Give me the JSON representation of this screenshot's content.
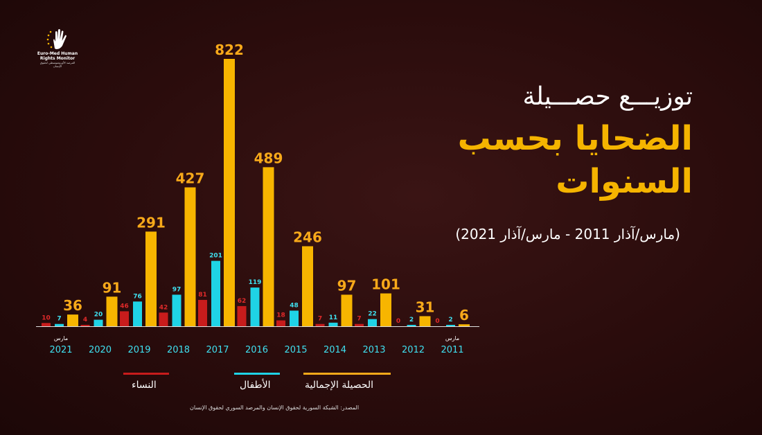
{
  "logo": {
    "line1": "Euro-Med Human",
    "line2": "Rights Monitor",
    "line3": "المرصد الأورومتوسطي لحقوق الإنسان"
  },
  "title": {
    "line1": "توزيـــع حصـــيلة",
    "line2": "الضحايا بحسب",
    "line3": "السنوات"
  },
  "subtitle": "(مارس/آذار 2011 - مارس/آذار 2021)",
  "legend": {
    "women": "النساء",
    "children": "الأطفال",
    "total": "الحصيلة الإجمالية"
  },
  "source": "المصدر: الشبكة السورية لحقوق الإنسان والمرصد السوري لحقوق الإنسان",
  "colors": {
    "women": "#c81c1c",
    "children": "#1fd3e6",
    "total": "#f7b500",
    "women_label": "#e02a2a",
    "children_label": "#3fe0f0",
    "total_label": "#f7a91a"
  },
  "chart_data": {
    "type": "bar",
    "categories": [
      "2021",
      "2020",
      "2019",
      "2018",
      "2017",
      "2016",
      "2015",
      "2014",
      "2013",
      "2012",
      "2011"
    ],
    "category_notes": {
      "2021": "مارس",
      "2011": "مارس"
    },
    "series": [
      {
        "name": "النساء",
        "values": [
          10,
          4,
          46,
          42,
          81,
          62,
          18,
          7,
          7,
          0,
          0
        ]
      },
      {
        "name": "الأطفال",
        "values": [
          7,
          20,
          76,
          97,
          201,
          119,
          48,
          11,
          22,
          2,
          2
        ]
      },
      {
        "name": "الحصيلة الإجمالية",
        "values": [
          36,
          91,
          291,
          427,
          822,
          489,
          246,
          97,
          101,
          31,
          6
        ]
      }
    ],
    "ylim": [
      0,
      822
    ],
    "grid": false,
    "legend_position": "bottom"
  }
}
